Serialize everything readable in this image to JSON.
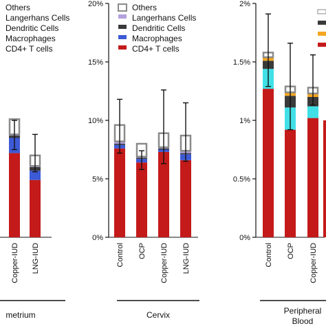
{
  "colors": {
    "others": "#ffffff",
    "others_outline": "#8a8a8a",
    "langerhans": "#b4a0e0",
    "dendritic": "#3a3a3a",
    "macrophages": "#3d5ad6",
    "cd4": "#c41a1a",
    "cyan": "#40e0e6",
    "orange": "#f5a623",
    "error_bar": "#111111",
    "axis": "#111111"
  },
  "chart_data": [
    {
      "type": "bar",
      "stacked": true,
      "group_label": "metrium",
      "legend": {
        "placement": "top-left",
        "entries": [
          "Others",
          "Langerhans Cells",
          "Dendritic Cells",
          "Macrophages",
          "CD4+ T cells"
        ]
      },
      "categories": [
        "Copper-IUD",
        "LNG-IUD"
      ],
      "series": [
        {
          "name": "CD4+ T cells",
          "values": [
            7.2,
            4.9
          ]
        },
        {
          "name": "Macrophages",
          "values": [
            1.3,
            0.8
          ]
        },
        {
          "name": "Dendritic Cells",
          "values": [
            0.2,
            0.3
          ]
        },
        {
          "name": "Langerhans Cells",
          "values": [
            0.1,
            0.1
          ]
        },
        {
          "name": "Others",
          "values": [
            1.3,
            0.9
          ]
        }
      ],
      "error_bars": [
        [
          7.5,
          10.0
        ],
        [
          5.6,
          8.8
        ]
      ],
      "ylim": [
        0,
        20
      ]
    },
    {
      "type": "bar",
      "stacked": true,
      "group_label": "Cervix",
      "legend": {
        "placement": "top-left",
        "entries": [
          "Others",
          "Langerhans Cells",
          "Dendritic Cells",
          "Macrophages",
          "CD4+ T cells"
        ]
      },
      "categories": [
        "Control",
        "OCP",
        "Copper-IUD",
        "LNG-IUD"
      ],
      "series": [
        {
          "name": "CD4+ T cells",
          "values": [
            7.6,
            6.4,
            7.3,
            6.6
          ]
        },
        {
          "name": "Macrophages",
          "values": [
            0.3,
            0.3,
            0.2,
            0.5
          ]
        },
        {
          "name": "Dendritic Cells",
          "values": [
            0.1,
            0.1,
            0.1,
            0.1
          ]
        },
        {
          "name": "Langerhans Cells",
          "values": [
            0.2,
            0.1,
            0.1,
            0.2
          ]
        },
        {
          "name": "Others",
          "values": [
            1.4,
            1.1,
            1.2,
            1.3
          ]
        }
      ],
      "error_bars": [
        [
          7.2,
          11.8
        ],
        [
          5.8,
          7.4
        ],
        [
          6.3,
          12.6
        ],
        [
          6.5,
          11.5
        ]
      ],
      "yticks": [
        "0%",
        "5%",
        "10%",
        "15%",
        "20%"
      ],
      "ylim": [
        0,
        20
      ]
    },
    {
      "type": "bar",
      "stacked": true,
      "group_label": "Peripheral Blood",
      "group_label_lines": [
        "Peripheral",
        "Blood"
      ],
      "categories": [
        "Control",
        "OCP",
        "Copper-IUD"
      ],
      "series": [
        {
          "name": "CD4+ T cells",
          "values": [
            1.27,
            0.92,
            1.02
          ]
        },
        {
          "name": "cyan",
          "values": [
            0.17,
            0.19,
            0.1
          ]
        },
        {
          "name": "dark",
          "values": [
            0.07,
            0.1,
            0.08
          ]
        },
        {
          "name": "orange",
          "values": [
            0.03,
            0.03,
            0.03
          ]
        },
        {
          "name": "Others",
          "values": [
            0.04,
            0.05,
            0.05
          ]
        }
      ],
      "error_bars": [
        [
          1.29,
          1.91
        ],
        [
          0.92,
          1.66
        ],
        [
          1.13,
          1.56
        ]
      ],
      "partial_bar_value": 1.0,
      "yticks": [
        "0%",
        "0.5%",
        "1%",
        "1.5%",
        "2%"
      ],
      "ylim": [
        0,
        2
      ]
    }
  ]
}
